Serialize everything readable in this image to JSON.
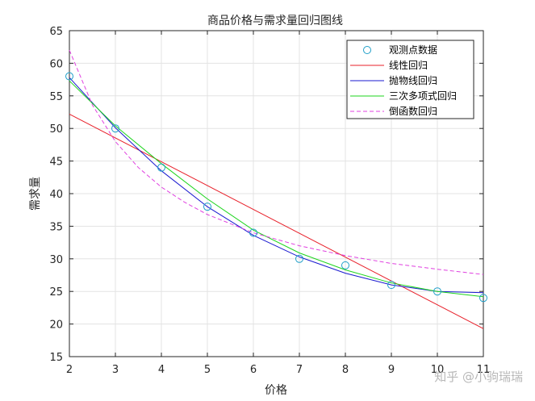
{
  "chart_data": {
    "type": "line",
    "title": "商品价格与需求量回归图线",
    "xlabel": "价格",
    "ylabel": "需求量",
    "xlim": [
      2,
      11
    ],
    "ylim": [
      15,
      65
    ],
    "xticks": [
      2,
      3,
      4,
      5,
      6,
      7,
      8,
      9,
      10,
      11
    ],
    "yticks": [
      15,
      20,
      25,
      30,
      35,
      40,
      45,
      50,
      55,
      60,
      65
    ],
    "grid": true,
    "legend_position": "top-right",
    "series": [
      {
        "name": "观测点数据",
        "style": "marker",
        "color": "#1f9fc8",
        "x": [
          2,
          3,
          4,
          5,
          6,
          7,
          8,
          9,
          10,
          11
        ],
        "y": [
          58,
          50,
          44,
          38,
          34,
          30,
          29,
          26,
          25,
          24
        ]
      },
      {
        "name": "线性回归",
        "style": "line",
        "color": "#e8202a",
        "x": [
          2,
          11
        ],
        "y": [
          52.2,
          19.3
        ]
      },
      {
        "name": "抛物线回归",
        "style": "line",
        "color": "#1a1ad0",
        "x": [
          2,
          3,
          4,
          5,
          6,
          7,
          8,
          9,
          10,
          11
        ],
        "y": [
          57.8,
          50.1,
          43.5,
          38.0,
          33.6,
          30.3,
          27.8,
          26.0,
          25.0,
          24.8
        ]
      },
      {
        "name": "三次多项式回归",
        "style": "line",
        "color": "#1ed51e",
        "x": [
          2,
          3,
          4,
          5,
          6,
          7,
          8,
          9,
          10,
          11
        ],
        "y": [
          57.3,
          50.4,
          44.6,
          39.2,
          34.4,
          30.9,
          28.3,
          26.3,
          25.0,
          24.2
        ]
      },
      {
        "name": "倒函数回归",
        "style": "dashed",
        "color": "#e040e0",
        "x": [
          2,
          2.5,
          3,
          3.5,
          4,
          4.5,
          5,
          6,
          7,
          8,
          9,
          10,
          11
        ],
        "y": [
          62.0,
          53.6,
          48.0,
          44.0,
          41.0,
          38.7,
          36.8,
          34.0,
          32.0,
          30.5,
          29.3,
          28.4,
          27.6
        ]
      }
    ]
  },
  "watermark": "知乎 @小驹瑞瑞"
}
